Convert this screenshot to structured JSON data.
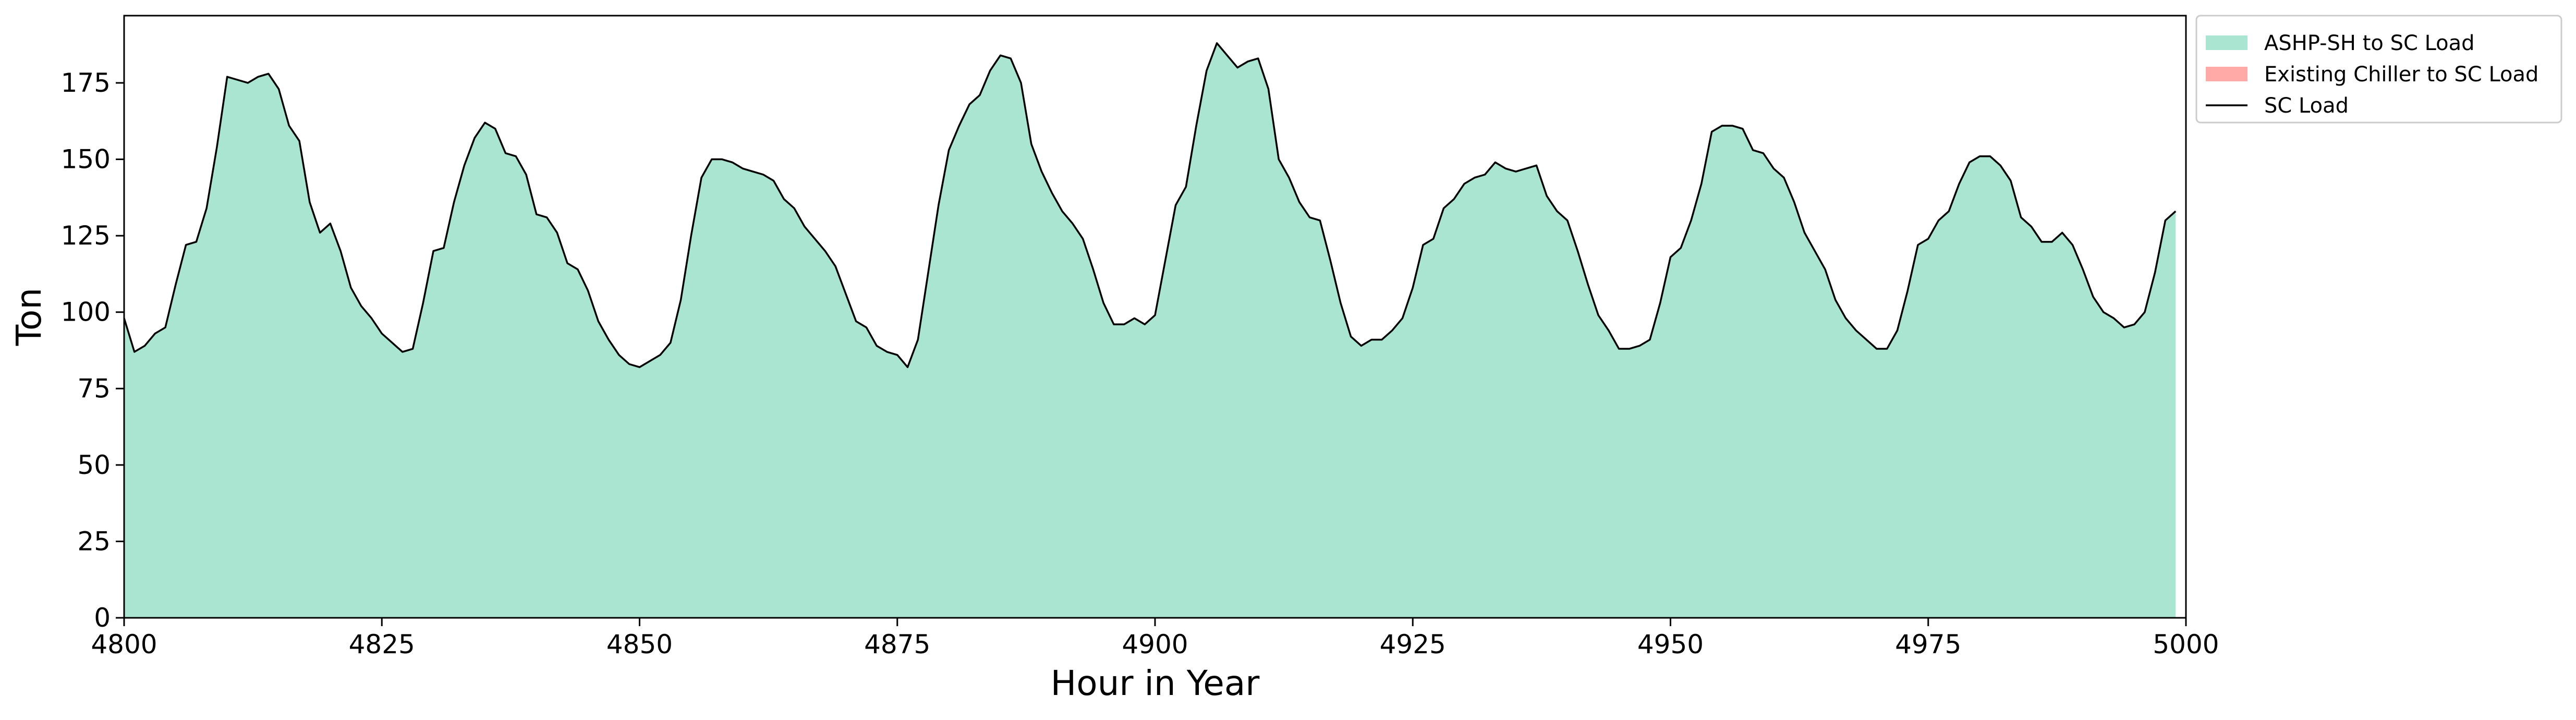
{
  "chart_data": {
    "type": "area",
    "title": "",
    "xlabel": "Hour in Year",
    "ylabel": "Ton",
    "xlim": [
      4800,
      5000
    ],
    "ylim": [
      0,
      197
    ],
    "xticks": [
      4800,
      4825,
      4850,
      4875,
      4900,
      4925,
      4950,
      4975,
      5000
    ],
    "yticks": [
      0,
      25,
      50,
      75,
      100,
      125,
      150,
      175
    ],
    "grid": false,
    "legend_position": "outside-top-right",
    "x": [
      4800,
      4801,
      4802,
      4803,
      4804,
      4805,
      4806,
      4807,
      4808,
      4809,
      4810,
      4811,
      4812,
      4813,
      4814,
      4815,
      4816,
      4817,
      4818,
      4819,
      4820,
      4821,
      4822,
      4823,
      4824,
      4825,
      4826,
      4827,
      4828,
      4829,
      4830,
      4831,
      4832,
      4833,
      4834,
      4835,
      4836,
      4837,
      4838,
      4839,
      4840,
      4841,
      4842,
      4843,
      4844,
      4845,
      4846,
      4847,
      4848,
      4849,
      4850,
      4851,
      4852,
      4853,
      4854,
      4855,
      4856,
      4857,
      4858,
      4859,
      4860,
      4861,
      4862,
      4863,
      4864,
      4865,
      4866,
      4867,
      4868,
      4869,
      4870,
      4871,
      4872,
      4873,
      4874,
      4875,
      4876,
      4877,
      4878,
      4879,
      4880,
      4881,
      4882,
      4883,
      4884,
      4885,
      4886,
      4887,
      4888,
      4889,
      4890,
      4891,
      4892,
      4893,
      4894,
      4895,
      4896,
      4897,
      4898,
      4899,
      4900,
      4901,
      4902,
      4903,
      4904,
      4905,
      4906,
      4907,
      4908,
      4909,
      4910,
      4911,
      4912,
      4913,
      4914,
      4915,
      4916,
      4917,
      4918,
      4919,
      4920,
      4921,
      4922,
      4923,
      4924,
      4925,
      4926,
      4927,
      4928,
      4929,
      4930,
      4931,
      4932,
      4933,
      4934,
      4935,
      4936,
      4937,
      4938,
      4939,
      4940,
      4941,
      4942,
      4943,
      4944,
      4945,
      4946,
      4947,
      4948,
      4949,
      4950,
      4951,
      4952,
      4953,
      4954,
      4955,
      4956,
      4957,
      4958,
      4959,
      4960,
      4961,
      4962,
      4963,
      4964,
      4965,
      4966,
      4967,
      4968,
      4969,
      4970,
      4971,
      4972,
      4973,
      4974,
      4975,
      4976,
      4977,
      4978,
      4979,
      4980,
      4981,
      4982,
      4983,
      4984,
      4985,
      4986,
      4987,
      4988,
      4989,
      4990,
      4991,
      4992,
      4993,
      4994,
      4995,
      4996,
      4997,
      4998,
      4999
    ],
    "series": [
      {
        "name": "ASHP-SH to SC Load",
        "kind": "area",
        "color": "#a9e5d0",
        "values": [
          98,
          87,
          89,
          93,
          95,
          109,
          122,
          123,
          134,
          154,
          177,
          176,
          175,
          177,
          178,
          173,
          161,
          156,
          136,
          126,
          129,
          120,
          108,
          102,
          98,
          93,
          90,
          87,
          88,
          103,
          120,
          121,
          136,
          148,
          157,
          162,
          160,
          152,
          151,
          145,
          132,
          131,
          126,
          116,
          114,
          107,
          97,
          91,
          86,
          83,
          82,
          84,
          86,
          90,
          104,
          125,
          144,
          150,
          150,
          149,
          147,
          146,
          145,
          143,
          137,
          134,
          128,
          124,
          120,
          115,
          106,
          97,
          95,
          89,
          87,
          86,
          82,
          91,
          113,
          135,
          153,
          161,
          168,
          171,
          179,
          184,
          183,
          175,
          155,
          146,
          139,
          133,
          129,
          124,
          114,
          103,
          96,
          96,
          98,
          96,
          99,
          117,
          135,
          141,
          161,
          179,
          188,
          184,
          180,
          182,
          183,
          173,
          150,
          144,
          136,
          131,
          130,
          117,
          103,
          92,
          89,
          91,
          91,
          94,
          98,
          108,
          122,
          124,
          134,
          137,
          142,
          144,
          145,
          149,
          147,
          146,
          147,
          148,
          138,
          133,
          130,
          120,
          109,
          99,
          94,
          88,
          88,
          89,
          91,
          103,
          118,
          121,
          130,
          142,
          159,
          161,
          161,
          160,
          153,
          152,
          147,
          144,
          136,
          126,
          120,
          114,
          104,
          98,
          94,
          91,
          88,
          88,
          94,
          107,
          122,
          124,
          130,
          133,
          142,
          149,
          151,
          151,
          148,
          143,
          131,
          128,
          123,
          123,
          126,
          122,
          114,
          105,
          100,
          98,
          95,
          96,
          100,
          113,
          130,
          133
        ]
      },
      {
        "name": "Existing Chiller to SC Load",
        "kind": "area",
        "color": "#ffaaa6",
        "values": [
          0,
          0,
          0,
          0,
          0,
          0,
          0,
          0,
          0,
          0,
          0,
          0,
          0,
          0,
          0,
          0,
          0,
          0,
          0,
          0,
          0,
          0,
          0,
          0,
          0,
          0,
          0,
          0,
          0,
          0,
          0,
          0,
          0,
          0,
          0,
          0,
          0,
          0,
          0,
          0,
          0,
          0,
          0,
          0,
          0,
          0,
          0,
          0,
          0,
          0,
          0,
          0,
          0,
          0,
          0,
          0,
          0,
          0,
          0,
          0,
          0,
          0,
          0,
          0,
          0,
          0,
          0,
          0,
          0,
          0,
          0,
          0,
          0,
          0,
          0,
          0,
          0,
          0,
          0,
          0,
          0,
          0,
          0,
          0,
          0,
          0,
          0,
          0,
          0,
          0,
          0,
          0,
          0,
          0,
          0,
          0,
          0,
          0,
          0,
          0,
          0,
          0,
          0,
          0,
          0,
          0,
          0,
          0,
          0,
          0,
          0,
          0,
          0,
          0,
          0,
          0,
          0,
          0,
          0,
          0,
          0,
          0,
          0,
          0,
          0,
          0,
          0,
          0,
          0,
          0,
          0,
          0,
          0,
          0,
          0,
          0,
          0,
          0,
          0,
          0,
          0,
          0,
          0,
          0,
          0,
          0,
          0,
          0,
          0,
          0,
          0,
          0,
          0,
          0,
          0,
          0,
          0,
          0,
          0,
          0,
          0,
          0,
          0,
          0,
          0,
          0,
          0,
          0,
          0,
          0,
          0,
          0,
          0,
          0,
          0,
          0,
          0,
          0,
          0,
          0,
          0,
          0,
          0,
          0,
          0,
          0,
          0,
          0,
          0,
          0,
          0,
          0,
          0,
          0,
          0,
          0,
          0,
          0,
          0,
          0
        ]
      },
      {
        "name": "SC Load",
        "kind": "line",
        "color": "#000000",
        "values": [
          98,
          87,
          89,
          93,
          95,
          109,
          122,
          123,
          134,
          154,
          177,
          176,
          175,
          177,
          178,
          173,
          161,
          156,
          136,
          126,
          129,
          120,
          108,
          102,
          98,
          93,
          90,
          87,
          88,
          103,
          120,
          121,
          136,
          148,
          157,
          162,
          160,
          152,
          151,
          145,
          132,
          131,
          126,
          116,
          114,
          107,
          97,
          91,
          86,
          83,
          82,
          84,
          86,
          90,
          104,
          125,
          144,
          150,
          150,
          149,
          147,
          146,
          145,
          143,
          137,
          134,
          128,
          124,
          120,
          115,
          106,
          97,
          95,
          89,
          87,
          86,
          82,
          91,
          113,
          135,
          153,
          161,
          168,
          171,
          179,
          184,
          183,
          175,
          155,
          146,
          139,
          133,
          129,
          124,
          114,
          103,
          96,
          96,
          98,
          96,
          99,
          117,
          135,
          141,
          161,
          179,
          188,
          184,
          180,
          182,
          183,
          173,
          150,
          144,
          136,
          131,
          130,
          117,
          103,
          92,
          89,
          91,
          91,
          94,
          98,
          108,
          122,
          124,
          134,
          137,
          142,
          144,
          145,
          149,
          147,
          146,
          147,
          148,
          138,
          133,
          130,
          120,
          109,
          99,
          94,
          88,
          88,
          89,
          91,
          103,
          118,
          121,
          130,
          142,
          159,
          161,
          161,
          160,
          153,
          152,
          147,
          144,
          136,
          126,
          120,
          114,
          104,
          98,
          94,
          91,
          88,
          88,
          94,
          107,
          122,
          124,
          130,
          133,
          142,
          149,
          151,
          151,
          148,
          143,
          131,
          128,
          123,
          123,
          126,
          122,
          114,
          105,
          100,
          98,
          95,
          96,
          100,
          113,
          130,
          133
        ]
      }
    ]
  }
}
